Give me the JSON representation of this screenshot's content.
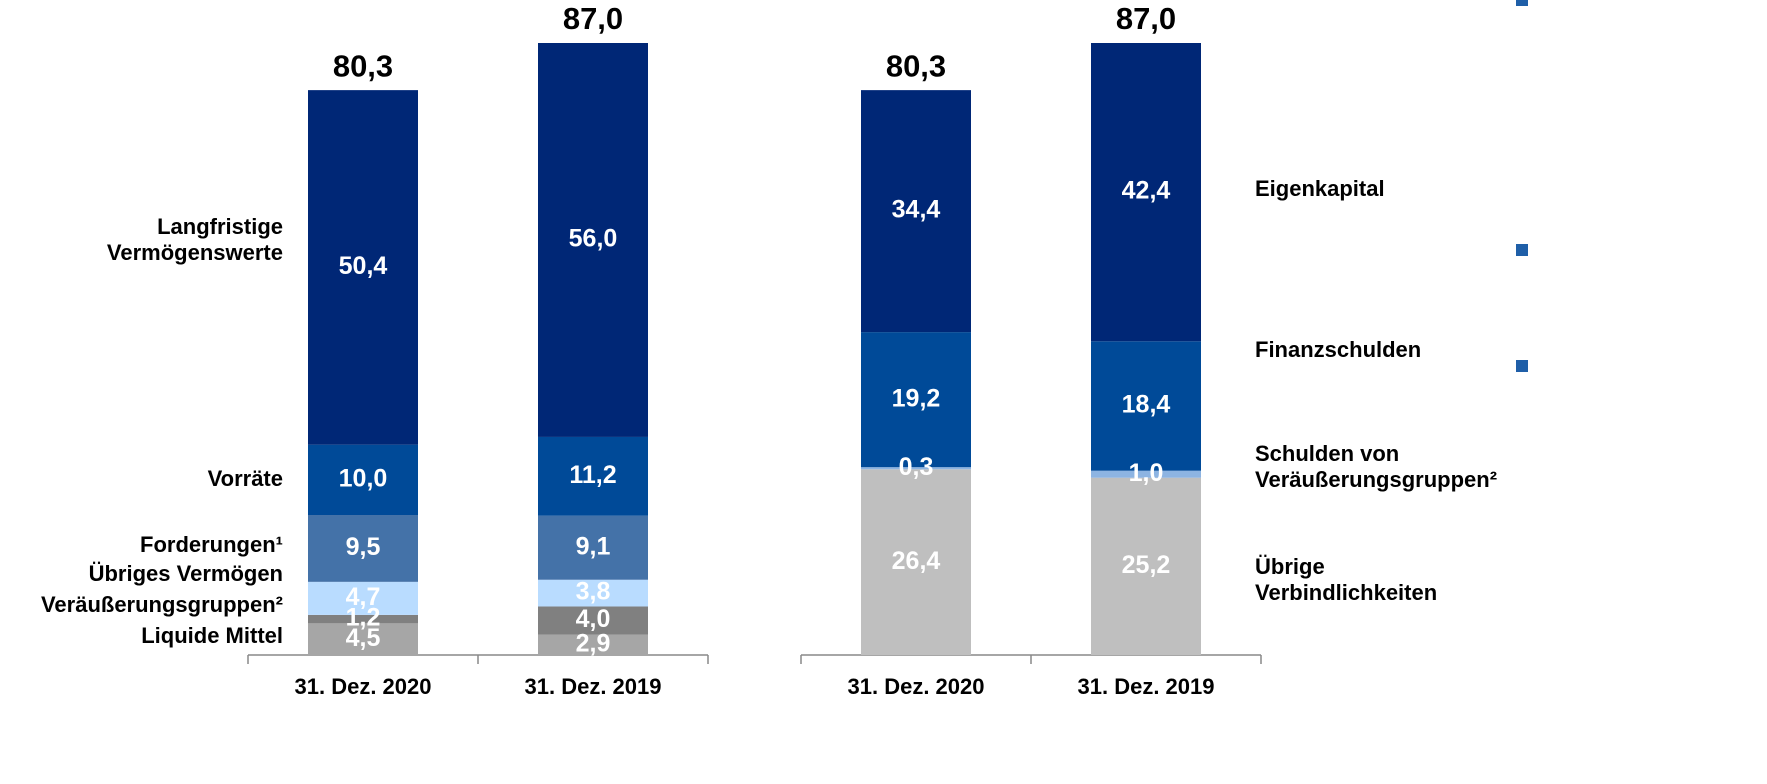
{
  "chart_data": [
    {
      "type": "bar",
      "stacked": true,
      "categories": [
        "31. Dez. 2020",
        "31. Dez. 2019"
      ],
      "series": [
        {
          "name": "Liquide Mittel",
          "color": "#a6a6a6",
          "values": [
            4.5,
            2.9
          ],
          "value_labels": [
            "4,5",
            "2,9"
          ]
        },
        {
          "name": "Veräußerungsgruppen²",
          "color": "#808080",
          "values": [
            1.2,
            4.0
          ],
          "value_labels": [
            "1,2",
            "4,0"
          ]
        },
        {
          "name": "Übriges Vermögen",
          "color": "#b9dcff",
          "values": [
            4.7,
            3.8
          ],
          "value_labels": [
            "4,7",
            "3,8"
          ]
        },
        {
          "name": "Forderungen¹",
          "color": "#4472a8",
          "values": [
            9.5,
            9.1
          ],
          "value_labels": [
            "9,5",
            "9,1"
          ]
        },
        {
          "name": "Vorräte",
          "color": "#004a98",
          "values": [
            10.0,
            11.2
          ],
          "value_labels": [
            "10,0",
            "11,2"
          ]
        },
        {
          "name": "Langfristige\nVermögenswerte",
          "color": "#002776",
          "values": [
            50.4,
            56.0
          ],
          "value_labels": [
            "50,4",
            "56,0"
          ]
        }
      ],
      "totals": [
        80.3,
        87.0
      ],
      "total_labels": [
        "80,3",
        "87,0"
      ]
    },
    {
      "type": "bar",
      "stacked": true,
      "categories": [
        "31. Dez. 2020",
        "31. Dez. 2019"
      ],
      "series": [
        {
          "name": "Übrige\nVerbindlichkeiten",
          "color": "#bfbfbf",
          "values": [
            26.4,
            25.2
          ],
          "value_labels": [
            "26,4",
            "25,2"
          ]
        },
        {
          "name": "Schulden von\nVeräußerungsgruppen²",
          "color": "#8db4e2",
          "values": [
            0.3,
            1.0
          ],
          "value_labels": [
            "0,3",
            "1,0"
          ]
        },
        {
          "name": "Finanzschulden",
          "color": "#004a98",
          "values": [
            19.2,
            18.4
          ],
          "value_labels": [
            "19,2",
            "18,4"
          ]
        },
        {
          "name": "Eigenkapital",
          "color": "#002776",
          "values": [
            34.4,
            42.4
          ],
          "value_labels": [
            "34,4",
            "42,4"
          ]
        }
      ],
      "totals": [
        80.3,
        87.0
      ],
      "total_labels": [
        "80,3",
        "87,0"
      ]
    }
  ]
}
